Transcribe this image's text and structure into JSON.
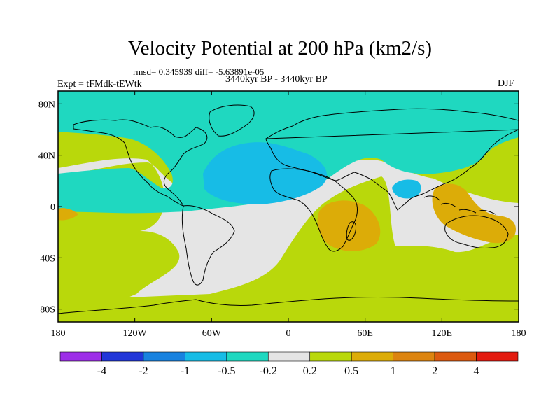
{
  "figure": {
    "title": "Velocity Potential at 200 hPa (km2/s)",
    "stats": "rmsd= 0.345939 diff= -5.63891e-05",
    "experiment": "Expt = tFMdk-tEWtk",
    "period": "3440kyr BP - 3440kyr BP",
    "season": "DJF"
  },
  "map": {
    "projection": "cylindrical equidistant",
    "lon_range": [
      -180,
      180
    ],
    "lat_range": [
      -90,
      90
    ],
    "lat_ticks": [
      {
        "value": 80,
        "label": "80N"
      },
      {
        "value": 40,
        "label": "40N"
      },
      {
        "value": 0,
        "label": "0"
      },
      {
        "value": -40,
        "label": "40S"
      },
      {
        "value": -80,
        "label": "80S"
      }
    ],
    "lon_ticks": [
      {
        "value": -180,
        "label": "180"
      },
      {
        "value": -120,
        "label": "120W"
      },
      {
        "value": -60,
        "label": "60W"
      },
      {
        "value": 0,
        "label": "0"
      },
      {
        "value": 60,
        "label": "60E"
      },
      {
        "value": 120,
        "label": "120E"
      },
      {
        "value": 180,
        "label": "180"
      }
    ],
    "field_regions": [
      {
        "name": "southern-band",
        "level": "0.2 to 0.5"
      },
      {
        "name": "northern-band",
        "level": "-0.5 to -0.2"
      },
      {
        "name": "north-america-atlantic-low",
        "level": "-1 to -0.5"
      },
      {
        "name": "arabia-low",
        "level": "-1 to -0.5"
      },
      {
        "name": "southern-africa-high",
        "level": "0.5 to 1"
      },
      {
        "name": "maritime-continent-high",
        "level": "0.5 to 1"
      },
      {
        "name": "dateline-high",
        "level": "0.5 to 1"
      }
    ]
  },
  "colorbar": {
    "labels": [
      "-4",
      "-2",
      "-1",
      "-0.5",
      "-0.2",
      "0.2",
      "0.5",
      "1",
      "2",
      "4"
    ],
    "colors": [
      "#9d2ee8",
      "#2136d8",
      "#1982df",
      "#17bce6",
      "#1fd8c0",
      "#e5e5e5",
      "#b9d80b",
      "#dcac08",
      "#dc8410",
      "#dc5a10",
      "#e31b10"
    ]
  }
}
